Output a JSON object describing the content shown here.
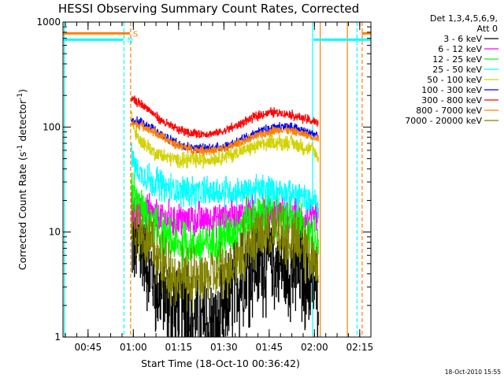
{
  "chart_data": {
    "type": "line",
    "title": "HESSI Observing Summary Count Rates, Corrected",
    "xlabel": "Start Time (18-Oct-10 00:36:42)",
    "ylabel": "Corrected Count Rate (s",
    "ylabel_exp": "-1",
    "ylabel_mid": " detector",
    "ylabel_close": ")",
    "yscale": "log",
    "ylim": [
      1,
      1000
    ],
    "xlim_minutes": [
      0,
      102
    ],
    "x_start": "00:36:42",
    "x_ticks": [
      {
        "label": "00:45",
        "min": 8.3
      },
      {
        "label": "01:00",
        "min": 23.3
      },
      {
        "label": "01:15",
        "min": 38.3
      },
      {
        "label": "01:30",
        "min": 53.3
      },
      {
        "label": "01:45",
        "min": 68.3
      },
      {
        "label": "02:00",
        "min": 83.3
      },
      {
        "label": "02:15",
        "min": 98.3
      }
    ],
    "y_ticks": [
      {
        "label": "1",
        "v": 1
      },
      {
        "label": "10",
        "v": 10
      },
      {
        "label": "100",
        "v": 100
      },
      {
        "label": "1000",
        "v": 1000
      }
    ],
    "legend": {
      "header1": "Det 1,3,4,5,6,9,",
      "header2": "Att 0",
      "placement": "right"
    },
    "series": [
      {
        "name": "3 - 6 keV",
        "color": "#000000",
        "noise": 0.35,
        "points": [
          [
            22.6,
            7
          ],
          [
            26,
            7
          ],
          [
            28,
            5
          ],
          [
            31,
            3
          ],
          [
            33,
            2.5
          ],
          [
            36,
            2
          ],
          [
            38,
            2
          ],
          [
            41,
            2
          ],
          [
            43,
            1.6
          ],
          [
            45,
            1.3
          ],
          [
            47,
            1.2
          ],
          [
            49,
            1.2
          ],
          [
            52,
            1.4
          ],
          [
            55,
            2.2
          ],
          [
            58,
            3.3
          ],
          [
            61,
            4.2
          ],
          [
            64,
            5
          ],
          [
            67,
            5.4
          ],
          [
            70,
            5
          ],
          [
            73,
            4.5
          ],
          [
            76,
            4.2
          ],
          [
            79,
            4
          ],
          [
            82,
            3.2
          ],
          [
            84.6,
            3
          ]
        ]
      },
      {
        "name": "6 - 12 keV",
        "color": "#ff00ff",
        "noise": 0.12,
        "points": [
          [
            22.6,
            17
          ],
          [
            26,
            16
          ],
          [
            30,
            14.5
          ],
          [
            34,
            13.5
          ],
          [
            38,
            13
          ],
          [
            44,
            13
          ],
          [
            50,
            13.5
          ],
          [
            56,
            14
          ],
          [
            60,
            15
          ],
          [
            64,
            15.5
          ],
          [
            68,
            15.5
          ],
          [
            72,
            15
          ],
          [
            76,
            14
          ],
          [
            80,
            13.5
          ],
          [
            84.6,
            13
          ]
        ]
      },
      {
        "name": "12 - 25 keV",
        "color": "#00ff00",
        "noise": 0.15,
        "points": [
          [
            22.6,
            26
          ],
          [
            24,
            20
          ],
          [
            27,
            15
          ],
          [
            30,
            11
          ],
          [
            34,
            8.5
          ],
          [
            38,
            7.5
          ],
          [
            44,
            7.5
          ],
          [
            50,
            8
          ],
          [
            56,
            10
          ],
          [
            60,
            12.5
          ],
          [
            64,
            14.5
          ],
          [
            67,
            15.5
          ],
          [
            70,
            15.5
          ],
          [
            73,
            14
          ],
          [
            77,
            12
          ],
          [
            81,
            10
          ],
          [
            84.6,
            8.5
          ]
        ]
      },
      {
        "name": "25 - 50 keV",
        "color": "#00ffff",
        "noise": 0.1,
        "points": [
          [
            22.6,
            52
          ],
          [
            24,
            42
          ],
          [
            26,
            35
          ],
          [
            30,
            30
          ],
          [
            34,
            27
          ],
          [
            38,
            25
          ],
          [
            44,
            24
          ],
          [
            50,
            24
          ],
          [
            56,
            24.5
          ],
          [
            60,
            25
          ],
          [
            64,
            25.5
          ],
          [
            68,
            25
          ],
          [
            72,
            25
          ],
          [
            76,
            23
          ],
          [
            80,
            21
          ],
          [
            84.6,
            19
          ]
        ]
      },
      {
        "name": "50 - 100 keV",
        "color": "#d2d200",
        "noise": 0.05,
        "points": [
          [
            22.6,
            120
          ],
          [
            24,
            85
          ],
          [
            26,
            72
          ],
          [
            30,
            58
          ],
          [
            34,
            52
          ],
          [
            38,
            49
          ],
          [
            44,
            48
          ],
          [
            50,
            50
          ],
          [
            56,
            55
          ],
          [
            60,
            60
          ],
          [
            64,
            66
          ],
          [
            68,
            70
          ],
          [
            72,
            72
          ],
          [
            76,
            70
          ],
          [
            80,
            64
          ],
          [
            83,
            60
          ],
          [
            84.6,
            50
          ]
        ]
      },
      {
        "name": "100 - 300 keV",
        "color": "#0000ff",
        "noise": 0.03,
        "points": [
          [
            22.6,
            115
          ],
          [
            26,
            110
          ],
          [
            30,
            95
          ],
          [
            34,
            80
          ],
          [
            38,
            70
          ],
          [
            42,
            64
          ],
          [
            46,
            63
          ],
          [
            50,
            63
          ],
          [
            54,
            66
          ],
          [
            58,
            73
          ],
          [
            62,
            82
          ],
          [
            66,
            92
          ],
          [
            70,
            100
          ],
          [
            73,
            102
          ],
          [
            76,
            98
          ],
          [
            80,
            92
          ],
          [
            83,
            86
          ],
          [
            84.6,
            82
          ]
        ]
      },
      {
        "name": "300 - 800 keV",
        "color": "#ff0000",
        "noise": 0.03,
        "points": [
          [
            22.6,
            185
          ],
          [
            25,
            170
          ],
          [
            28,
            150
          ],
          [
            31,
            125
          ],
          [
            34,
            108
          ],
          [
            38,
            95
          ],
          [
            42,
            88
          ],
          [
            46,
            86
          ],
          [
            50,
            87
          ],
          [
            54,
            93
          ],
          [
            58,
            105
          ],
          [
            62,
            120
          ],
          [
            66,
            132
          ],
          [
            69,
            138
          ],
          [
            72,
            137
          ],
          [
            75,
            132
          ],
          [
            79,
            122
          ],
          [
            82,
            115
          ],
          [
            84.6,
            110
          ]
        ]
      },
      {
        "name": "800 - 7000 keV",
        "color": "#ff8000",
        "noise": 0.03,
        "points": [
          [
            22.6,
            108
          ],
          [
            26,
            104
          ],
          [
            30,
            90
          ],
          [
            34,
            76
          ],
          [
            38,
            67
          ],
          [
            42,
            62
          ],
          [
            46,
            60
          ],
          [
            50,
            60
          ],
          [
            54,
            63
          ],
          [
            58,
            70
          ],
          [
            62,
            78
          ],
          [
            66,
            86
          ],
          [
            70,
            93
          ],
          [
            73,
            95
          ],
          [
            76,
            91
          ],
          [
            80,
            85
          ],
          [
            83,
            80
          ],
          [
            84.6,
            78
          ]
        ]
      },
      {
        "name": "7000 - 20000 keV",
        "color": "#808000",
        "noise": 0.2,
        "points": [
          [
            22.6,
            13
          ],
          [
            25,
            11
          ],
          [
            28,
            8
          ],
          [
            31,
            6
          ],
          [
            34,
            4.5
          ],
          [
            38,
            3.8
          ],
          [
            42,
            3.5
          ],
          [
            46,
            3.5
          ],
          [
            50,
            3.8
          ],
          [
            54,
            4.5
          ],
          [
            58,
            6
          ],
          [
            62,
            8
          ],
          [
            65,
            9.5
          ],
          [
            68,
            10
          ],
          [
            71,
            9.5
          ],
          [
            74,
            8.5
          ],
          [
            78,
            7.5
          ],
          [
            81,
            6.5
          ],
          [
            84.6,
            5
          ]
        ]
      }
    ],
    "segments": [
      {
        "name": "S",
        "color": "#ff8000",
        "y": 780,
        "ranges": [
          [
            0,
            22.2
          ],
          [
            99,
            102
          ]
        ],
        "label_min": 23.2
      },
      {
        "name": "N",
        "color": "#00ffff",
        "y": 680,
        "ranges": [
          [
            0,
            20
          ],
          [
            83,
            102
          ]
        ],
        "label_min": 21.2
      }
    ],
    "vlines": [
      {
        "min": 0.5,
        "color": "#00ffff",
        "style": "solid"
      },
      {
        "min": 20.2,
        "color": "#00ffff",
        "style": "dashed"
      },
      {
        "min": 22.4,
        "color": "#ff8000",
        "style": "dashed"
      },
      {
        "min": 82.7,
        "color": "#00ffff",
        "style": "solid"
      },
      {
        "min": 85.2,
        "color": "#ff8000",
        "style": "solid"
      },
      {
        "min": 94.2,
        "color": "#ff8000",
        "style": "solid"
      },
      {
        "min": 97.4,
        "color": "#00ffff",
        "style": "dashed"
      },
      {
        "min": 99.1,
        "color": "#ff8000",
        "style": "dashed"
      }
    ],
    "footer": "18-Oct-2010 15:55"
  }
}
